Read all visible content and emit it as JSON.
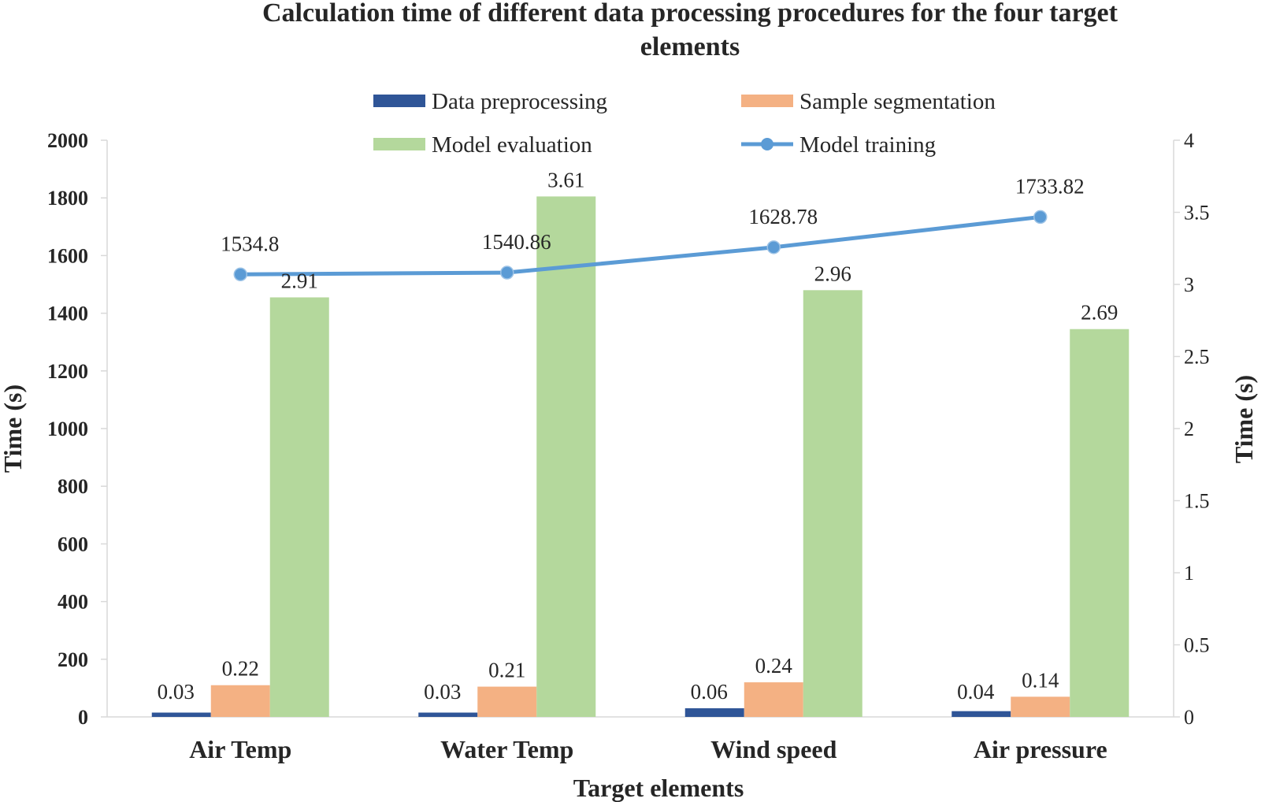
{
  "chart_data": {
    "type": "bar",
    "title": "Calculation time of different data processing procedures for the four target elements",
    "title_lines": [
      "Calculation time of different data processing procedures for the four target",
      "elements"
    ],
    "xlabel": "Target elements",
    "ylabel": "Time  (s)",
    "y2label": "Time  (s)",
    "categories": [
      "Air Temp",
      "Water Temp",
      "Wind speed",
      "Air pressure"
    ],
    "ylim": [
      0,
      2000
    ],
    "yticks": [
      0,
      200,
      400,
      600,
      800,
      1000,
      1200,
      1400,
      1600,
      1800,
      2000
    ],
    "y2lim": [
      0,
      4
    ],
    "y2ticks": [
      "0",
      "0.5",
      "1",
      "1.5",
      "2",
      "2.5",
      "3",
      "3.5",
      "4"
    ],
    "series": [
      {
        "name": "Data preprocessing",
        "type": "bar",
        "axis": "right",
        "color": "#2F5597",
        "values": [
          0.03,
          0.03,
          0.06,
          0.04
        ],
        "labels": [
          "0.03",
          "0.03",
          "0.06",
          "0.04"
        ]
      },
      {
        "name": "Sample segmentation",
        "type": "bar",
        "axis": "right",
        "color": "#F4B183",
        "values": [
          0.22,
          0.21,
          0.24,
          0.14
        ],
        "labels": [
          "0.22",
          "0.21",
          "0.24",
          "0.14"
        ]
      },
      {
        "name": "Model evaluation",
        "type": "bar",
        "axis": "right",
        "color": "#B4D89C",
        "values": [
          2.91,
          3.61,
          2.96,
          2.69
        ],
        "labels": [
          "2.91",
          "3.61",
          "2.96",
          "2.69"
        ]
      },
      {
        "name": "Model training",
        "type": "line",
        "axis": "left",
        "color": "#5B9BD5",
        "values": [
          1534.8,
          1540.86,
          1628.78,
          1733.82
        ],
        "labels": [
          "1534.8",
          "1540.86",
          "1628.78",
          "1733.82"
        ]
      }
    ],
    "legend_position": "top",
    "grid": false
  }
}
